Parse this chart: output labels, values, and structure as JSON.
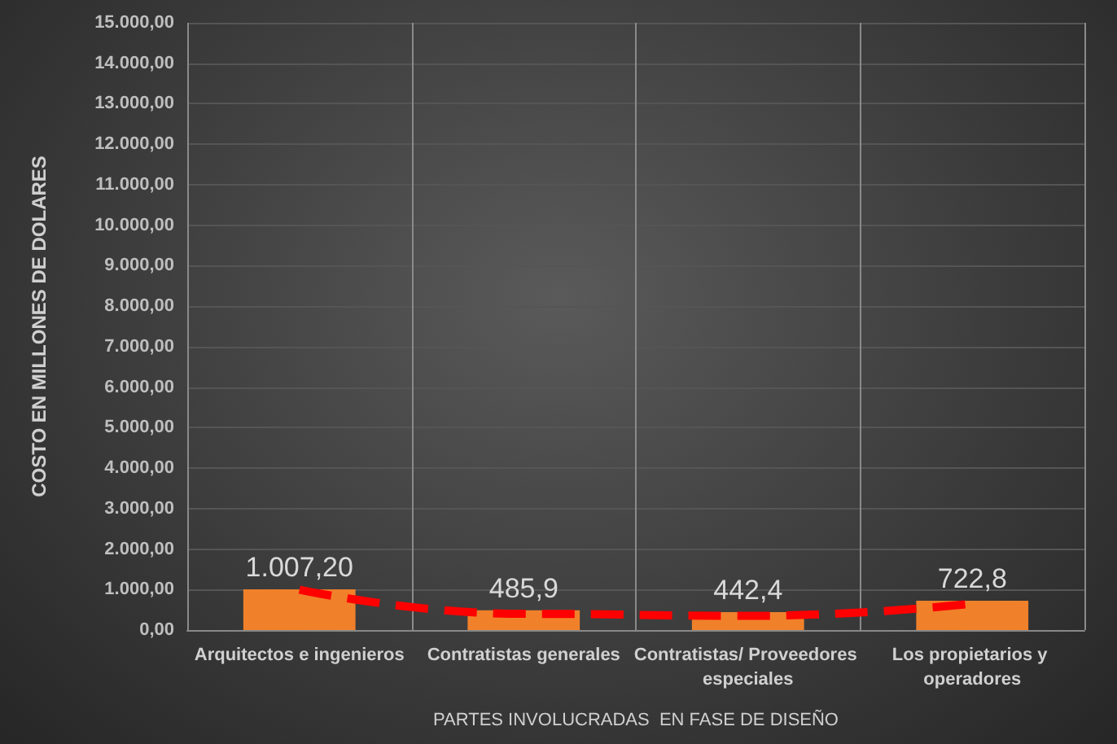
{
  "chart_data": {
    "type": "bar",
    "xlabel": "PARTES INVOLUCRADAS  EN FASE DE DISEÑO",
    "ylabel": "COSTO EN MILLONES DE DOLARES",
    "categories": [
      "Arquitectos e ingenieros",
      "Contratistas generales",
      "Contratistas/ Proveedores especiales",
      "Los propietarios y operadores"
    ],
    "series": [
      {
        "color": "#f0812a",
        "values": [
          1007.2,
          485.9,
          442.4,
          722.8
        ],
        "value_labels": [
          "1.007,20",
          "485,9",
          "442,4",
          "722,8"
        ]
      },
      {
        "type": "line",
        "color": "#ff0000",
        "line_style": "dashed",
        "marker": "none",
        "values": [
          1000,
          400,
          350,
          650
        ]
      }
    ],
    "ylim": [
      0,
      15000
    ],
    "yticks": [
      {
        "value": 0,
        "label": "0,00"
      },
      {
        "value": 1000,
        "label": "1.000,00"
      },
      {
        "value": 2000,
        "label": "2.000,00"
      },
      {
        "value": 3000,
        "label": "3.000,00"
      },
      {
        "value": 4000,
        "label": "4.000,00"
      },
      {
        "value": 5000,
        "label": "5.000,00"
      },
      {
        "value": 6000,
        "label": "6.000,00"
      },
      {
        "value": 7000,
        "label": "7.000,00"
      },
      {
        "value": 8000,
        "label": "8.000,00"
      },
      {
        "value": 9000,
        "label": "9.000,00"
      },
      {
        "value": 10000,
        "label": "10.000,00"
      },
      {
        "value": 11000,
        "label": "11.000,00"
      },
      {
        "value": 12000,
        "label": "12.000,00"
      },
      {
        "value": 13000,
        "label": "13.000,00"
      },
      {
        "value": 14000,
        "label": "14.000,00"
      },
      {
        "value": 15000,
        "label": "15.000,00"
      }
    ],
    "grid": true
  }
}
